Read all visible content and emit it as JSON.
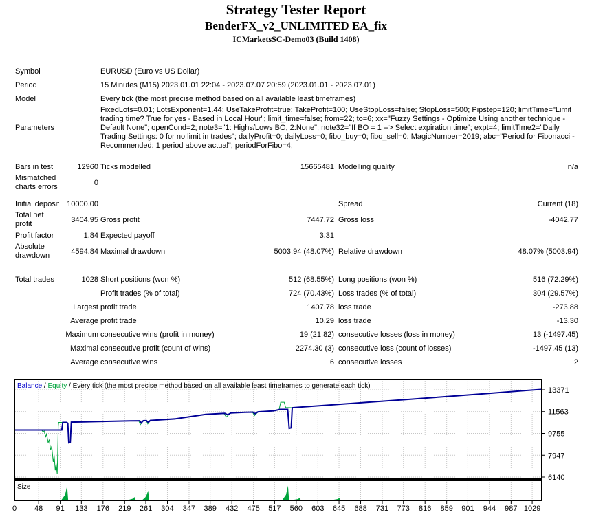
{
  "header": {
    "title": "Strategy Tester Report",
    "subtitle": "BenderFX_v2_UNLIMITED EA_fix",
    "server": "ICMarketsSC-Demo03 (Build 1408)"
  },
  "stats": {
    "rows": [
      {
        "type": "wide",
        "label": "Symbol",
        "text": "EURUSD (Euro vs US Dollar)"
      },
      {
        "type": "wide",
        "label": "Period",
        "text": "15 Minutes (M15) 2023.01.01 22:04 - 2023.07.07 20:59 (2023.01.01 - 2023.07.01)"
      },
      {
        "type": "wide",
        "label": "Model",
        "text": "Every tick (the most precise method based on all available least timeframes)"
      },
      {
        "type": "wide",
        "label": "Parameters",
        "text": "FixedLots=0.01; LotsExponent=1.44; UseTakeProfit=true; TakeProfit=100; UseStopLoss=false; StopLoss=500; Pipstep=120; limitTime=\"Limit trading time? True for yes - Based in Local Hour\"; limit_time=false; from=22; to=6; xx=\"Fuzzy Settings - Optimize Using another technique - Default None\"; openCond=2; note3=\"1: Highs/Lows BO, 2:None\"; note32=\"If BO = 1 --> Select expiration time\"; expt=4; limitTime2=\"Daily Trading Settings: 0 for no limit in trades\"; dailyProfit=0; dailyLoss=0; fibo_buy=0; fibo_sell=0; MagicNumber=2019; abc=\"Period for Fibonacci - Recommended: 1 period above actual\"; periodForFibo=4;"
      },
      {
        "type": "gap",
        "size": "md"
      },
      {
        "type": "cols",
        "a": "Bars in test",
        "b": "12960",
        "c": "Ticks modelled",
        "d": "15665481",
        "e": "Modelling quality",
        "f": "n/a"
      },
      {
        "type": "cols",
        "a": "Mismatched charts errors",
        "b": "0",
        "c": "",
        "d": "",
        "e": "",
        "f": ""
      },
      {
        "type": "gap",
        "size": "sm"
      },
      {
        "type": "cols",
        "a": "Initial deposit",
        "b": "10000.00",
        "c": "",
        "d": "",
        "e": "Spread",
        "f": "Current (18)"
      },
      {
        "type": "cols",
        "a": "Total net profit",
        "b": "3404.95",
        "c": "Gross profit",
        "d": "7447.72",
        "e": "Gross loss",
        "f": "-4042.77"
      },
      {
        "type": "cols",
        "a": "Profit factor",
        "b": "1.84",
        "c": "Expected payoff",
        "d": "3.31",
        "e": "",
        "f": ""
      },
      {
        "type": "cols",
        "a": "Absolute drawdown",
        "b": "4594.84",
        "c": "Maximal drawdown",
        "d": "5003.94 (48.07%)",
        "e": "Relative drawdown",
        "f": "48.07% (5003.94)"
      },
      {
        "type": "gap",
        "size": "lg"
      },
      {
        "type": "cols",
        "a": "Total trades",
        "b": "1028",
        "c": "Short positions (won %)",
        "d": "512 (68.55%)",
        "e": "Long positions (won %)",
        "f": "516 (72.29%)"
      },
      {
        "type": "cols",
        "a": "",
        "b": "",
        "c": "Profit trades (% of total)",
        "d": "724 (70.43%)",
        "e": "Loss trades (% of total)",
        "f": "304 (29.57%)"
      },
      {
        "type": "cols",
        "a": "",
        "b": "Largest",
        "c": "profit trade",
        "d": "1407.78",
        "e": "loss trade",
        "f": "-273.88"
      },
      {
        "type": "cols",
        "a": "",
        "b": "Average",
        "c": "profit trade",
        "d": "10.29",
        "e": "loss trade",
        "f": "-13.30"
      },
      {
        "type": "cols",
        "a": "",
        "b": "Maximum",
        "c": "consecutive wins (profit in money)",
        "d": "19 (21.82)",
        "e": "consecutive losses (loss in money)",
        "f": "13 (-1497.45)"
      },
      {
        "type": "cols",
        "a": "",
        "b": "Maximal",
        "c": "consecutive profit (count of wins)",
        "d": "2274.30 (3)",
        "e": "consecutive loss (count of losses)",
        "f": "-1497.45 (13)"
      },
      {
        "type": "cols",
        "a": "",
        "b": "Average",
        "c": "consecutive wins",
        "d": "6",
        "e": "consecutive losses",
        "f": "2"
      }
    ]
  },
  "chart_data": {
    "type": "line",
    "legend_parts": [
      {
        "text": "Balance",
        "color": "#0000cc"
      },
      {
        "text": " / ",
        "color": "#000000"
      },
      {
        "text": "Equity",
        "color": "#00a53c"
      },
      {
        "text": " / Every tick (the most precise method based on all available least timeframes to generate each tick)",
        "color": "#000000"
      }
    ],
    "x_ticks": [
      0,
      48,
      91,
      133,
      176,
      219,
      261,
      304,
      347,
      389,
      432,
      475,
      517,
      560,
      603,
      645,
      688,
      731,
      773,
      816,
      859,
      901,
      944,
      987,
      1029
    ],
    "y_ticks": [
      13371,
      11563,
      9755,
      7947,
      6140
    ],
    "x_max": 1048,
    "grid_color": "#c6c6c6",
    "series": [
      {
        "name": "Equity",
        "color": "#00a53c",
        "width": 1,
        "points": [
          [
            0,
            10040
          ],
          [
            54,
            10040
          ],
          [
            57,
            9870
          ],
          [
            59,
            9950
          ],
          [
            62,
            9480
          ],
          [
            64,
            9690
          ],
          [
            67,
            8980
          ],
          [
            69,
            9240
          ],
          [
            72,
            8380
          ],
          [
            74,
            8700
          ],
          [
            77,
            7400
          ],
          [
            79,
            7900
          ],
          [
            81,
            6700
          ],
          [
            83,
            7250
          ],
          [
            85,
            6370
          ],
          [
            86,
            8300
          ],
          [
            87,
            10400
          ],
          [
            88,
            10665
          ],
          [
            104,
            10665
          ],
          [
            106,
            10600
          ],
          [
            108,
            8990
          ],
          [
            111,
            9040
          ],
          [
            113,
            10690
          ],
          [
            160,
            10730
          ],
          [
            230,
            10790
          ],
          [
            247,
            10800
          ],
          [
            250,
            10470
          ],
          [
            256,
            10810
          ],
          [
            262,
            10820
          ],
          [
            265,
            10540
          ],
          [
            270,
            10830
          ],
          [
            320,
            10960
          ],
          [
            380,
            11330
          ],
          [
            416,
            11420
          ],
          [
            421,
            11120
          ],
          [
            430,
            11450
          ],
          [
            458,
            11500
          ],
          [
            473,
            11520
          ],
          [
            477,
            11230
          ],
          [
            484,
            11540
          ],
          [
            515,
            11630
          ],
          [
            526,
            11745
          ],
          [
            529,
            12340
          ],
          [
            536,
            12340
          ],
          [
            539,
            11900
          ],
          [
            552,
            11890
          ],
          [
            620,
            12090
          ],
          [
            700,
            12330
          ],
          [
            780,
            12570
          ],
          [
            860,
            12810
          ],
          [
            940,
            13060
          ],
          [
            1010,
            13290
          ],
          [
            1048,
            13405
          ]
        ]
      },
      {
        "name": "Balance",
        "color": "#000096",
        "width": 2,
        "points": [
          [
            0,
            10040
          ],
          [
            94,
            10040
          ],
          [
            96,
            10665
          ],
          [
            104,
            10665
          ],
          [
            106,
            10600
          ],
          [
            108,
            8980
          ],
          [
            111,
            9030
          ],
          [
            113,
            10690
          ],
          [
            160,
            10730
          ],
          [
            230,
            10790
          ],
          [
            249,
            10800
          ],
          [
            252,
            10620
          ],
          [
            256,
            10810
          ],
          [
            262,
            10820
          ],
          [
            266,
            10660
          ],
          [
            270,
            10830
          ],
          [
            320,
            10960
          ],
          [
            380,
            11330
          ],
          [
            418,
            11420
          ],
          [
            424,
            11300
          ],
          [
            430,
            11450
          ],
          [
            458,
            11500
          ],
          [
            474,
            11520
          ],
          [
            478,
            11390
          ],
          [
            484,
            11540
          ],
          [
            515,
            11630
          ],
          [
            528,
            11745
          ],
          [
            543,
            11745
          ],
          [
            546,
            10180
          ],
          [
            550,
            10220
          ],
          [
            552,
            11890
          ],
          [
            620,
            12090
          ],
          [
            700,
            12330
          ],
          [
            780,
            12570
          ],
          [
            860,
            12810
          ],
          [
            940,
            13060
          ],
          [
            1010,
            13290
          ],
          [
            1048,
            13405
          ]
        ]
      }
    ],
    "size_panel": {
      "label": "Size",
      "spike_color": "#00a53c",
      "spikes": [
        {
          "t": 106,
          "h": 0.85
        },
        {
          "t": 240,
          "h": 0.16
        },
        {
          "t": 267,
          "h": 0.55
        },
        {
          "t": 545,
          "h": 0.85
        },
        {
          "t": 568,
          "h": 0.1
        },
        {
          "t": 647,
          "h": 0.1
        }
      ]
    }
  }
}
